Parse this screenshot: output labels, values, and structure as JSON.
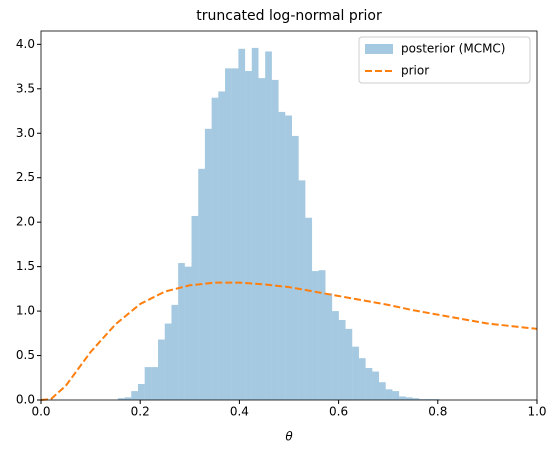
{
  "chart_data": {
    "type": "histogram",
    "title": "truncated log-normal prior",
    "xlabel": "θ",
    "xlim": [
      0,
      1
    ],
    "ylim": [
      0,
      4.15
    ],
    "xticks": [
      {
        "value": 0,
        "label": "0.0"
      },
      0.2,
      0.4,
      0.6,
      0.8,
      {
        "value": 1,
        "label": "1.0"
      }
    ],
    "yticks": [
      {
        "value": 0,
        "label": "0.0"
      },
      0.5,
      {
        "value": 1,
        "label": "1.0"
      },
      1.5,
      {
        "value": 2,
        "label": "2.0"
      },
      2.5,
      {
        "value": 3,
        "label": "3.0"
      },
      3.5,
      {
        "value": 4,
        "label": "4.0"
      }
    ],
    "legend": "upper right",
    "series": [
      {
        "name": "posterior (MCMC)",
        "type": "histogram",
        "color": "#1f77b4",
        "alpha": 0.4,
        "bins": [
          0.155,
          0.1685,
          0.182,
          0.1955,
          0.209,
          0.2225,
          0.236,
          0.2495,
          0.263,
          0.2765,
          0.29,
          0.3035,
          0.317,
          0.3305,
          0.344,
          0.3575,
          0.371,
          0.3845,
          0.398,
          0.4115,
          0.425,
          0.4385,
          0.452,
          0.4655,
          0.479,
          0.4925,
          0.506,
          0.5195,
          0.533,
          0.5465,
          0.56,
          0.5735,
          0.587,
          0.6005,
          0.614,
          0.6275,
          0.641,
          0.6545,
          0.668,
          0.6815,
          0.695,
          0.7085,
          0.722,
          0.7355,
          0.749,
          0.7625,
          0.776,
          0.7895,
          0.803
        ],
        "values": [
          0.02,
          0.03,
          0.1,
          0.18,
          0.37,
          0.37,
          0.68,
          0.86,
          1.07,
          1.54,
          1.5,
          2.07,
          2.6,
          3.05,
          3.4,
          3.47,
          3.73,
          3.73,
          3.95,
          3.7,
          3.96,
          3.62,
          3.92,
          3.6,
          3.24,
          3.2,
          2.97,
          2.47,
          2.05,
          1.45,
          1.46,
          1.2,
          1.0,
          0.9,
          0.8,
          0.6,
          0.47,
          0.36,
          0.32,
          0.2,
          0.12,
          0.1,
          0.04,
          0.03,
          0.02,
          0.01,
          0.01,
          0.01
        ]
      },
      {
        "name": "prior",
        "type": "line",
        "color": "#ff7f0e",
        "dashed": true,
        "x": [
          0,
          0.02,
          0.05,
          0.1,
          0.15,
          0.2,
          0.25,
          0.3,
          0.35,
          0.4,
          0.45,
          0.5,
          0.55,
          0.6,
          0.65,
          0.7,
          0.75,
          0.8,
          0.85,
          0.9,
          0.95,
          1.0
        ],
        "values": [
          0,
          0.01,
          0.16,
          0.54,
          0.85,
          1.08,
          1.22,
          1.29,
          1.32,
          1.32,
          1.3,
          1.27,
          1.22,
          1.17,
          1.12,
          1.07,
          1.01,
          0.96,
          0.91,
          0.86,
          0.83,
          0.8
        ]
      }
    ]
  }
}
